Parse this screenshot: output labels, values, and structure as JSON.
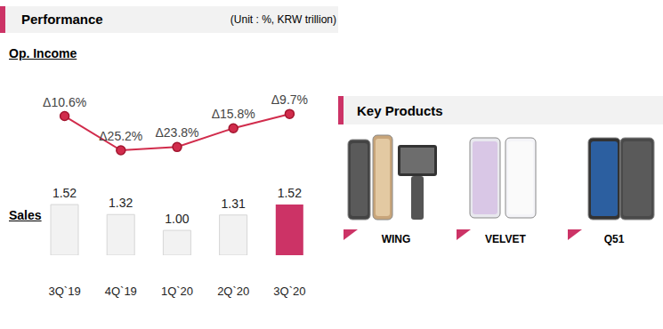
{
  "header": {
    "title": "Performance",
    "unit": "(Unit : %, KRW trillion)"
  },
  "chart_data": [
    {
      "type": "line",
      "title": "Op. Income",
      "categories": [
        "3Q`19",
        "4Q`19",
        "1Q`20",
        "2Q`20",
        "3Q`20"
      ],
      "values": [
        -10.6,
        -25.2,
        -23.8,
        -15.8,
        -9.7
      ],
      "value_labels": [
        "Δ10.6%",
        "Δ25.2%",
        "Δ23.8%",
        "Δ15.8%",
        "Δ9.7%"
      ],
      "color": "#d12c4c",
      "marker": "circle",
      "data_labels": true,
      "tick_labels": false,
      "ylim": [
        -70,
        1
      ]
    },
    {
      "type": "bar",
      "title": "Sales",
      "categories": [
        "3Q`19",
        "4Q`19",
        "1Q`20",
        "2Q`20",
        "3Q`20"
      ],
      "values": [
        1.52,
        1.32,
        1.0,
        1.31,
        1.52
      ],
      "value_labels": [
        "1.52",
        "1.32",
        "1.00",
        "1.31",
        "1.52"
      ],
      "colors": [
        "#f2f2f2",
        "#f2f2f2",
        "#f2f2f2",
        "#f2f2f2",
        "#cc3366"
      ],
      "data_labels": true,
      "tick_labels": "x",
      "ylim": [
        0.5,
        3.85
      ]
    }
  ],
  "key_products": {
    "title": "Key Products",
    "items": [
      "WING",
      "VELVET",
      "Q51"
    ]
  }
}
